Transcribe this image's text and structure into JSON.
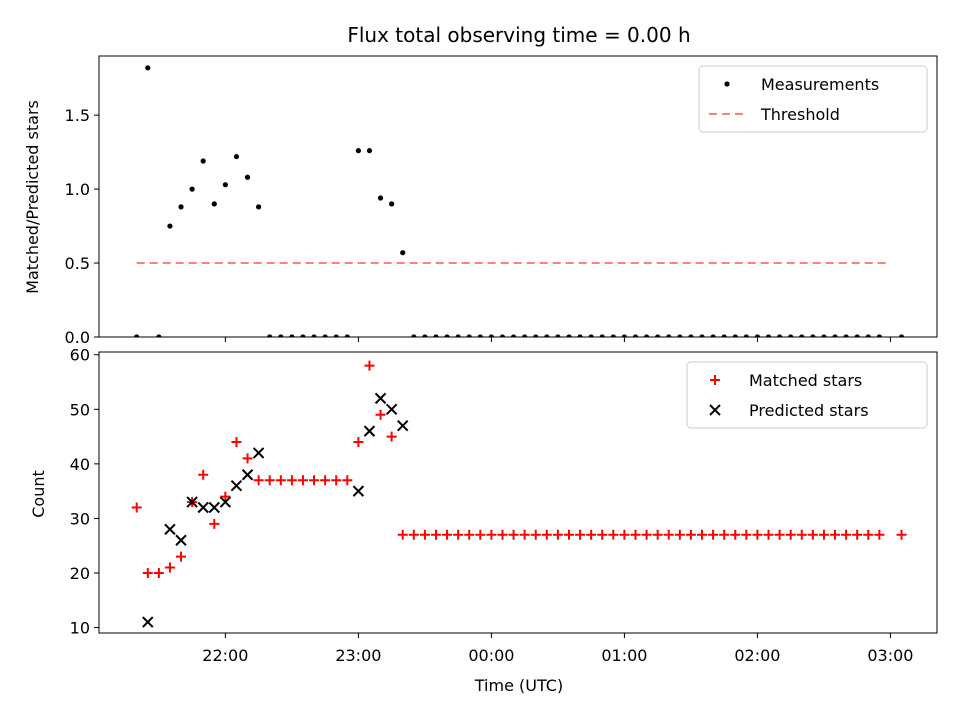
{
  "chart_data": {
    "title": "Flux total observing time = 0.00 h",
    "xlabel": "Time (UTC)",
    "x_ticks": [
      "22:00",
      "23:00",
      "00:00",
      "01:00",
      "02:00",
      "03:00"
    ],
    "x_tick_hours": [
      22,
      23,
      24,
      25,
      26,
      27
    ],
    "xlim_hours": [
      21.05,
      27.35
    ],
    "panels": [
      {
        "type": "scatter",
        "ylabel": "Matched/Predicted stars",
        "ylim": [
          0,
          1.9
        ],
        "y_ticks": [
          0.0,
          0.5,
          1.0,
          1.5
        ],
        "y_tick_labels": [
          "0.0",
          "0.5",
          "1.0",
          "1.5"
        ],
        "legend_position": "top-right",
        "series": [
          {
            "name": "Measurements",
            "marker": "dot",
            "color": "#000000",
            "points": [
              [
                "21:20",
                0.0
              ],
              [
                "21:25",
                1.82
              ],
              [
                "21:30",
                0.0
              ],
              [
                "21:35",
                0.75
              ],
              [
                "21:40",
                0.88
              ],
              [
                "21:45",
                1.0
              ],
              [
                "21:50",
                1.19
              ],
              [
                "21:55",
                0.9
              ],
              [
                "22:00",
                1.03
              ],
              [
                "22:05",
                1.22
              ],
              [
                "22:10",
                1.08
              ],
              [
                "22:15",
                0.88
              ],
              [
                "22:20",
                0.0
              ],
              [
                "22:25",
                0.0
              ],
              [
                "22:30",
                0.0
              ],
              [
                "22:35",
                0.0
              ],
              [
                "22:40",
                0.0
              ],
              [
                "22:45",
                0.0
              ],
              [
                "22:50",
                0.0
              ],
              [
                "22:55",
                0.0
              ],
              [
                "23:00",
                1.26
              ],
              [
                "23:05",
                1.26
              ],
              [
                "23:10",
                0.94
              ],
              [
                "23:15",
                0.9
              ],
              [
                "23:20",
                0.57
              ],
              [
                "23:25",
                0.0
              ],
              [
                "23:30",
                0.0
              ],
              [
                "23:35",
                0.0
              ],
              [
                "23:40",
                0.0
              ],
              [
                "23:45",
                0.0
              ],
              [
                "23:50",
                0.0
              ],
              [
                "23:55",
                0.0
              ],
              [
                "00:00",
                0.0
              ],
              [
                "00:05",
                0.0
              ],
              [
                "00:10",
                0.0
              ],
              [
                "00:15",
                0.0
              ],
              [
                "00:20",
                0.0
              ],
              [
                "00:25",
                0.0
              ],
              [
                "00:30",
                0.0
              ],
              [
                "00:35",
                0.0
              ],
              [
                "00:40",
                0.0
              ],
              [
                "00:45",
                0.0
              ],
              [
                "00:50",
                0.0
              ],
              [
                "00:55",
                0.0
              ],
              [
                "01:00",
                0.0
              ],
              [
                "01:05",
                0.0
              ],
              [
                "01:10",
                0.0
              ],
              [
                "01:15",
                0.0
              ],
              [
                "01:20",
                0.0
              ],
              [
                "01:25",
                0.0
              ],
              [
                "01:30",
                0.0
              ],
              [
                "01:35",
                0.0
              ],
              [
                "01:40",
                0.0
              ],
              [
                "01:45",
                0.0
              ],
              [
                "01:50",
                0.0
              ],
              [
                "01:55",
                0.0
              ],
              [
                "02:00",
                0.0
              ],
              [
                "02:05",
                0.0
              ],
              [
                "02:10",
                0.0
              ],
              [
                "02:15",
                0.0
              ],
              [
                "02:20",
                0.0
              ],
              [
                "02:25",
                0.0
              ],
              [
                "02:30",
                0.0
              ],
              [
                "02:35",
                0.0
              ],
              [
                "02:40",
                0.0
              ],
              [
                "02:45",
                0.0
              ],
              [
                "02:50",
                0.0
              ],
              [
                "02:55",
                0.0
              ],
              [
                "03:05",
                0.0
              ]
            ]
          },
          {
            "name": "Threshold",
            "type": "line",
            "style": "dashed",
            "color": "#ff7f7f",
            "points": [
              [
                "21:20",
                0.5
              ],
              [
                "03:00",
                0.5
              ]
            ]
          }
        ]
      },
      {
        "type": "scatter",
        "ylabel": "Count",
        "ylim": [
          9,
          60.5
        ],
        "y_ticks": [
          10,
          20,
          30,
          40,
          50,
          60
        ],
        "y_tick_labels": [
          "10",
          "20",
          "30",
          "40",
          "50",
          "60"
        ],
        "legend_position": "top-right",
        "series": [
          {
            "name": "Matched stars",
            "marker": "plus",
            "color": "#ff0000",
            "points": [
              [
                "21:20",
                32
              ],
              [
                "21:25",
                20
              ],
              [
                "21:30",
                20
              ],
              [
                "21:35",
                21
              ],
              [
                "21:40",
                23
              ],
              [
                "21:45",
                33
              ],
              [
                "21:50",
                38
              ],
              [
                "21:55",
                29
              ],
              [
                "22:00",
                34
              ],
              [
                "22:05",
                44
              ],
              [
                "22:10",
                41
              ],
              [
                "22:15",
                37
              ],
              [
                "22:20",
                37
              ],
              [
                "22:25",
                37
              ],
              [
                "22:30",
                37
              ],
              [
                "22:35",
                37
              ],
              [
                "22:40",
                37
              ],
              [
                "22:45",
                37
              ],
              [
                "22:50",
                37
              ],
              [
                "22:55",
                37
              ],
              [
                "23:00",
                44
              ],
              [
                "23:05",
                58
              ],
              [
                "23:10",
                49
              ],
              [
                "23:15",
                45
              ],
              [
                "23:20",
                27
              ],
              [
                "23:25",
                27
              ],
              [
                "23:30",
                27
              ],
              [
                "23:35",
                27
              ],
              [
                "23:40",
                27
              ],
              [
                "23:45",
                27
              ],
              [
                "23:50",
                27
              ],
              [
                "23:55",
                27
              ],
              [
                "00:00",
                27
              ],
              [
                "00:05",
                27
              ],
              [
                "00:10",
                27
              ],
              [
                "00:15",
                27
              ],
              [
                "00:20",
                27
              ],
              [
                "00:25",
                27
              ],
              [
                "00:30",
                27
              ],
              [
                "00:35",
                27
              ],
              [
                "00:40",
                27
              ],
              [
                "00:45",
                27
              ],
              [
                "00:50",
                27
              ],
              [
                "00:55",
                27
              ],
              [
                "01:00",
                27
              ],
              [
                "01:05",
                27
              ],
              [
                "01:10",
                27
              ],
              [
                "01:15",
                27
              ],
              [
                "01:20",
                27
              ],
              [
                "01:25",
                27
              ],
              [
                "01:30",
                27
              ],
              [
                "01:35",
                27
              ],
              [
                "01:40",
                27
              ],
              [
                "01:45",
                27
              ],
              [
                "01:50",
                27
              ],
              [
                "01:55",
                27
              ],
              [
                "02:00",
                27
              ],
              [
                "02:05",
                27
              ],
              [
                "02:10",
                27
              ],
              [
                "02:15",
                27
              ],
              [
                "02:20",
                27
              ],
              [
                "02:25",
                27
              ],
              [
                "02:30",
                27
              ],
              [
                "02:35",
                27
              ],
              [
                "02:40",
                27
              ],
              [
                "02:45",
                27
              ],
              [
                "02:50",
                27
              ],
              [
                "02:55",
                27
              ],
              [
                "03:05",
                27
              ]
            ]
          },
          {
            "name": "Predicted stars",
            "marker": "x",
            "color": "#000000",
            "points": [
              [
                "21:25",
                11
              ],
              [
                "21:35",
                28
              ],
              [
                "21:40",
                26
              ],
              [
                "21:45",
                33
              ],
              [
                "21:50",
                32
              ],
              [
                "21:55",
                32
              ],
              [
                "22:00",
                33
              ],
              [
                "22:05",
                36
              ],
              [
                "22:10",
                38
              ],
              [
                "22:15",
                42
              ],
              [
                "23:00",
                35
              ],
              [
                "23:05",
                46
              ],
              [
                "23:10",
                52
              ],
              [
                "23:15",
                50
              ],
              [
                "23:20",
                47
              ]
            ]
          }
        ]
      }
    ]
  }
}
